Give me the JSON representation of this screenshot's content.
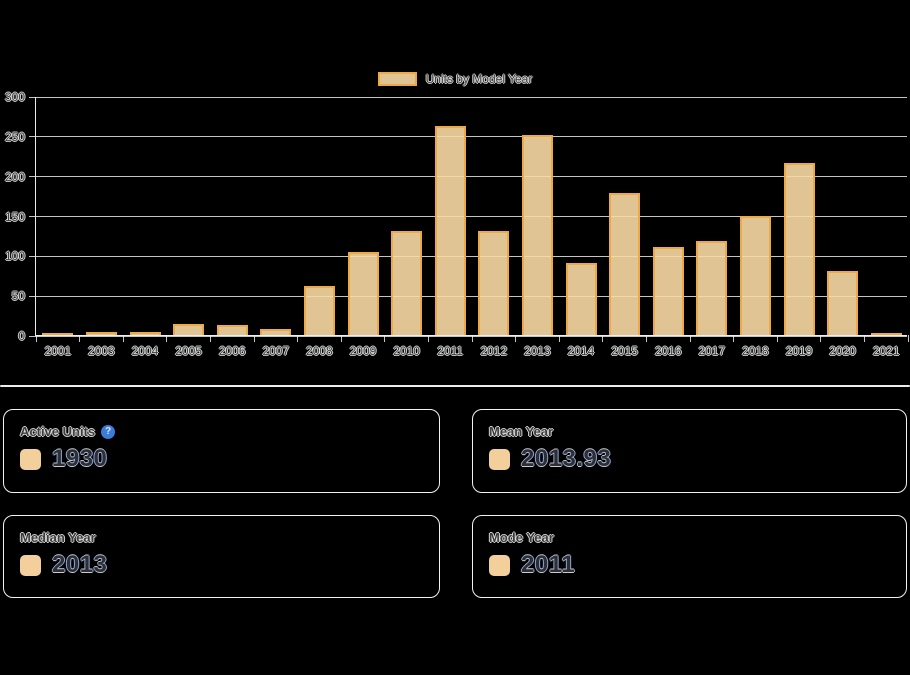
{
  "chart_data": {
    "type": "bar",
    "title": "Units by Model Year",
    "categories": [
      "2001",
      "2003",
      "2004",
      "2005",
      "2006",
      "2007",
      "2008",
      "2009",
      "2010",
      "2011",
      "2012",
      "2013",
      "2014",
      "2015",
      "2016",
      "2017",
      "2018",
      "2019",
      "2020",
      "2021"
    ],
    "values": [
      1,
      4,
      4,
      14,
      13,
      8,
      62,
      104,
      131,
      262,
      130,
      251,
      90,
      178,
      111,
      118,
      150,
      216,
      80,
      3
    ],
    "xlabel": "",
    "ylabel": "",
    "ylim": [
      0,
      300
    ],
    "yticks": [
      0,
      50,
      100,
      150,
      200,
      250,
      300
    ],
    "grid": true,
    "legend_position": "top"
  },
  "colors": {
    "background": "#000000",
    "bar_fill": "rgba(249,217,164,0.9)",
    "bar_border": "#efa846",
    "gridline": "rgba(240,240,240,0.82)",
    "swatch": "#f3d09b",
    "help_icon_bg": "#3a7cd8"
  },
  "icons": {
    "help_glyph": "?"
  },
  "cards": [
    {
      "label": "Active Units",
      "value": "1930"
    },
    {
      "label": "Mean Year",
      "value": "2013.93"
    },
    {
      "label": "Median Year",
      "value": "2013"
    },
    {
      "label": "Mode Year",
      "value": "2011"
    }
  ]
}
